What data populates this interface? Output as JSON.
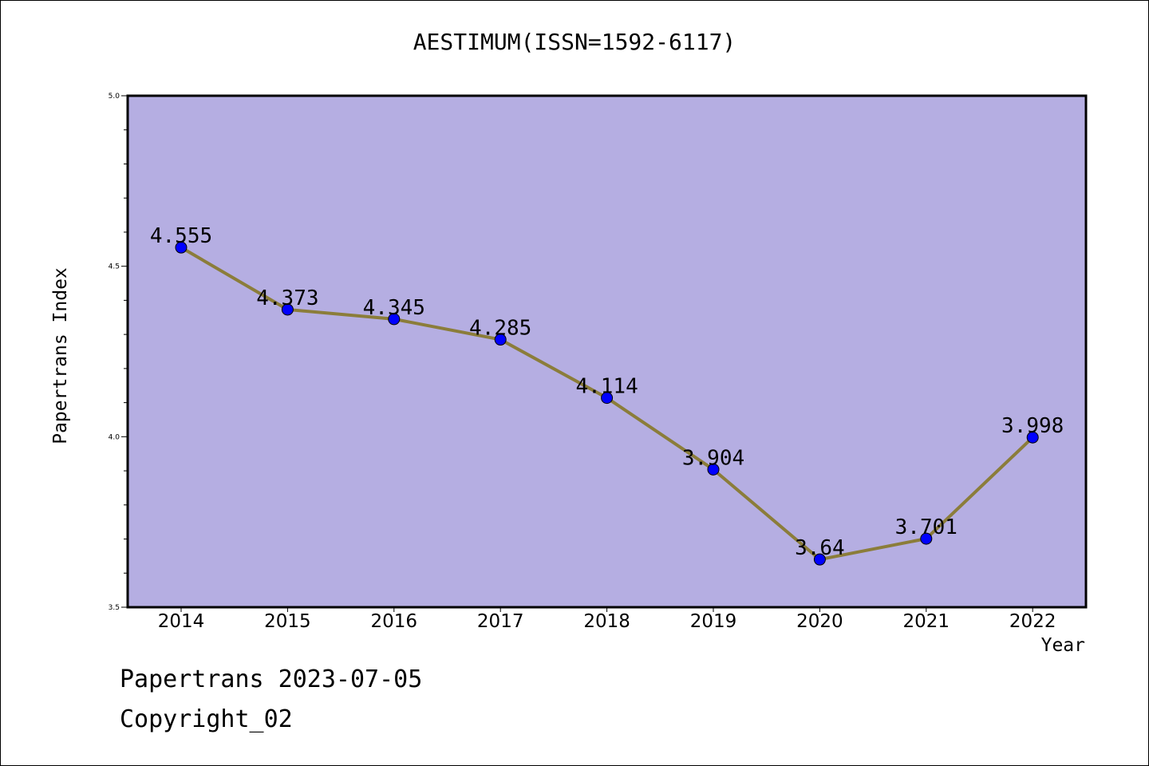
{
  "chart_data": {
    "type": "line",
    "title": "AESTIMUM(ISSN=1592-6117)",
    "xlabel": "Year",
    "ylabel": "Papertrans Index",
    "categories": [
      "2014",
      "2015",
      "2016",
      "2017",
      "2018",
      "2019",
      "2020",
      "2021",
      "2022"
    ],
    "series": [
      {
        "values": [
          4.555,
          4.373,
          4.345,
          4.285,
          4.114,
          3.904,
          3.64,
          3.701,
          3.998
        ],
        "labels": [
          "4.555",
          "4.373",
          "4.345",
          "4.285",
          "4.114",
          "3.904",
          "3.64",
          "3.701",
          "3.998"
        ]
      }
    ],
    "ylim": [
      3.5,
      5.0
    ],
    "yticks": [
      "3.5",
      "4.0",
      "4.5",
      "5.0"
    ],
    "grid": false,
    "colors": {
      "plot_background": "#b5aee2",
      "line": "#8b7d3a",
      "marker": "#0000ff"
    }
  },
  "footer": {
    "date_line": "Papertrans 2023-07-05",
    "copyright": "Copyright_02"
  }
}
